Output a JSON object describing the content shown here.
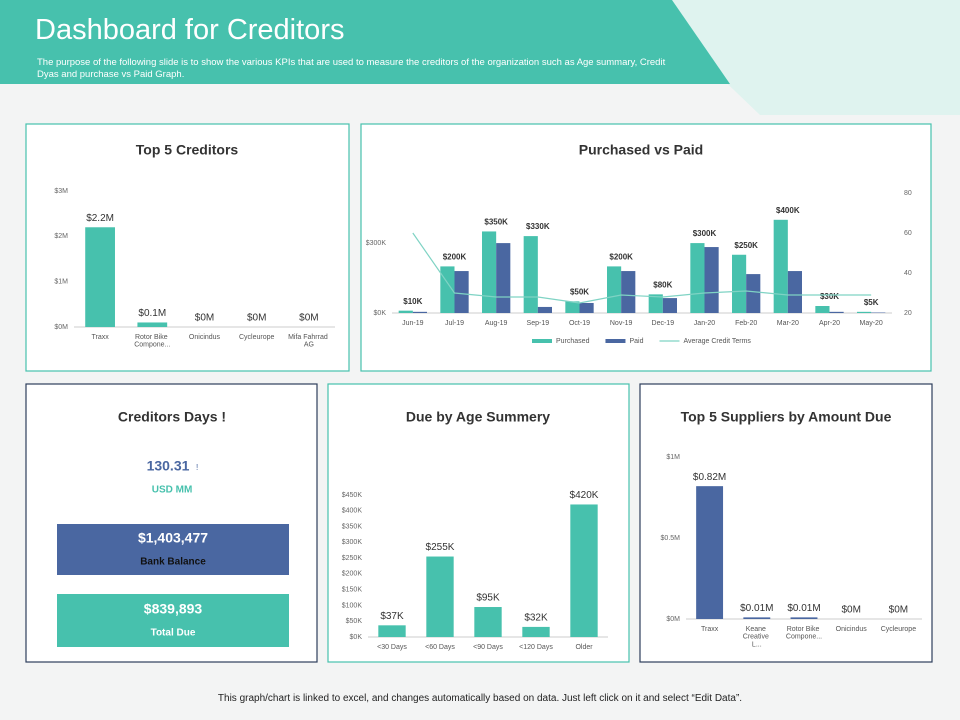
{
  "header": {
    "title": "Dashboard for Creditors",
    "description": "The purpose of the following slide is to show the various KPIs that are used to measure the creditors of the organization such as Age summary, Credit Dyas and purchase vs Paid Graph."
  },
  "chart_data": [
    {
      "type": "bar",
      "title": "Top 5 Creditors",
      "categories": [
        "Traxx",
        "Rotor Bike Compone...",
        "Onicindus",
        "Cycleurope",
        "Mifa Fahrrad AG"
      ],
      "values": [
        2.2,
        0.1,
        0,
        0,
        0
      ],
      "value_labels": [
        "$2.2M",
        "$0.1M",
        "$0M",
        "$0M",
        "$0M"
      ],
      "color": "#47c1ad",
      "ylim": [
        0,
        3
      ],
      "yticks": [
        {
          "value": 0,
          "label": "$0M"
        },
        {
          "value": 1,
          "label": "$1M"
        },
        {
          "value": 2,
          "label": "$2M"
        },
        {
          "value": 3,
          "label": "$3M"
        }
      ],
      "grid": false
    },
    {
      "type": "bar",
      "title": "Purchased vs Paid",
      "categories": [
        "Jun-19",
        "Jul-19",
        "Aug-19",
        "Sep-19",
        "Oct-19",
        "Nov-19",
        "Dec-19",
        "Jan-20",
        "Feb-20",
        "Mar-20",
        "Apr-20",
        "May-20"
      ],
      "series": [
        {
          "name": "Purchased",
          "color": "#47c1ad",
          "values": [
            10,
            200,
            350,
            330,
            50,
            200,
            80,
            300,
            250,
            400,
            30,
            5
          ],
          "value_labels": [
            "$10K",
            "$200K",
            "$350K",
            "$330K",
            "$50K",
            "$200K",
            "$80K",
            "$300K",
            "$250K",
            "$400K",
            "$30K",
            "$5K"
          ]
        },
        {
          "name": "Paid",
          "color": "#4a67a1",
          "values": [
            5,
            180,
            300,
            26,
            43,
            180,
            64,
            283,
            167,
            180,
            5,
            2
          ]
        },
        {
          "name": "Average Credit Terms",
          "color": "#7fd3c4",
          "type": "line",
          "axis": "y2",
          "values": [
            60,
            30,
            28,
            28,
            25,
            29,
            28,
            30,
            31,
            29,
            29,
            29
          ]
        }
      ],
      "ylim": [
        0,
        515
      ],
      "yticks": [
        {
          "value": 0,
          "label": "$0K"
        },
        {
          "value": 300,
          "label": "$300K"
        }
      ],
      "y2lim": [
        20,
        80
      ],
      "y2ticks": [
        20,
        40,
        60,
        80
      ],
      "legend": "bottom",
      "grid": false
    },
    {
      "type": "bar",
      "title": "Due by Age Summery",
      "categories": [
        "<30 Days",
        "<60 Days",
        "<90 Days",
        "<120 Days",
        "Older"
      ],
      "values": [
        37,
        255,
        95,
        32,
        420
      ],
      "value_labels": [
        "$37K",
        "$255K",
        "$95K",
        "$32K",
        "$420K"
      ],
      "color": "#47c1ad",
      "ylim": [
        0,
        450
      ],
      "yticks": [
        {
          "value": 0,
          "label": "$0K"
        },
        {
          "value": 50,
          "label": "$50K"
        },
        {
          "value": 100,
          "label": "$100K"
        },
        {
          "value": 150,
          "label": "$150K"
        },
        {
          "value": 200,
          "label": "$200K"
        },
        {
          "value": 250,
          "label": "$250K"
        },
        {
          "value": 300,
          "label": "$300K"
        },
        {
          "value": 350,
          "label": "$350K"
        },
        {
          "value": 400,
          "label": "$400K"
        },
        {
          "value": 450,
          "label": "$450K"
        }
      ],
      "grid": false
    },
    {
      "type": "bar",
      "title": "Top 5 Suppliers by Amount Due",
      "categories": [
        "Traxx",
        "Keane Creative L...",
        "Rotor Bike Compone...",
        "Onicindus",
        "Cycleurope"
      ],
      "values": [
        0.82,
        0.01,
        0.01,
        0,
        0
      ],
      "value_labels": [
        "$0.82M",
        "$0.01M",
        "$0.01M",
        "$0M",
        "$0M"
      ],
      "color": "#4a67a1",
      "ylim": [
        0,
        1
      ],
      "yticks": [
        {
          "value": 0,
          "label": "$0M"
        },
        {
          "value": 0.5,
          "label": "$0.5M"
        },
        {
          "value": 1,
          "label": "$1M"
        }
      ],
      "grid": false
    }
  ],
  "creditors_days": {
    "title": "Creditors Days !",
    "value": "130.31",
    "mark": "!",
    "unit": "USD MM",
    "bank_balance": {
      "value": "$1,403,477",
      "label": "Bank Balance"
    },
    "total_due": {
      "value": "$839,893",
      "label": "Total Due"
    }
  },
  "footer": "This graph/chart is linked to excel, and changes automatically based on data. Just left click on it and select “Edit Data”."
}
